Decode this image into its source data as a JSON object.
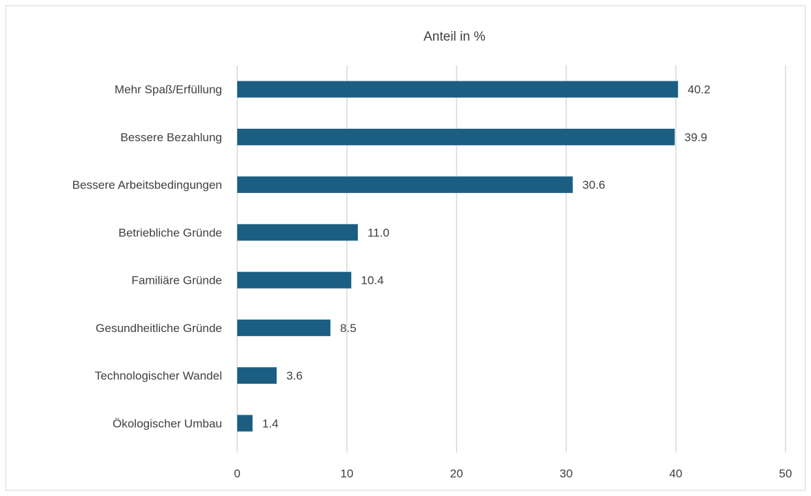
{
  "chart_data": {
    "type": "bar",
    "orientation": "horizontal",
    "title": "Anteil in %",
    "categories": [
      "Mehr Spaß/Erfüllung",
      "Bessere Bezahlung",
      "Bessere Arbeitsbedingungen",
      "Betriebliche Gründe",
      "Familiäre Gründe",
      "Gesundheitliche Gründe",
      "Technologischer Wandel",
      "Ökologischer Umbau"
    ],
    "values": [
      40.2,
      39.9,
      30.6,
      11.0,
      10.4,
      8.5,
      3.6,
      1.4
    ],
    "data_labels": [
      "40.2",
      "39.9",
      "30.6",
      "11.0",
      "10.4",
      "8.5",
      "3.6",
      "1.4"
    ],
    "xlim": [
      0,
      50
    ],
    "x_ticks": [
      0,
      10,
      20,
      30,
      40,
      50
    ],
    "grid": "vertical",
    "legend": "none",
    "colors": {
      "bar": "#1b5e82",
      "grid": "#d9d9d9",
      "text": "#404040",
      "frame": "#d9d9d9"
    }
  }
}
